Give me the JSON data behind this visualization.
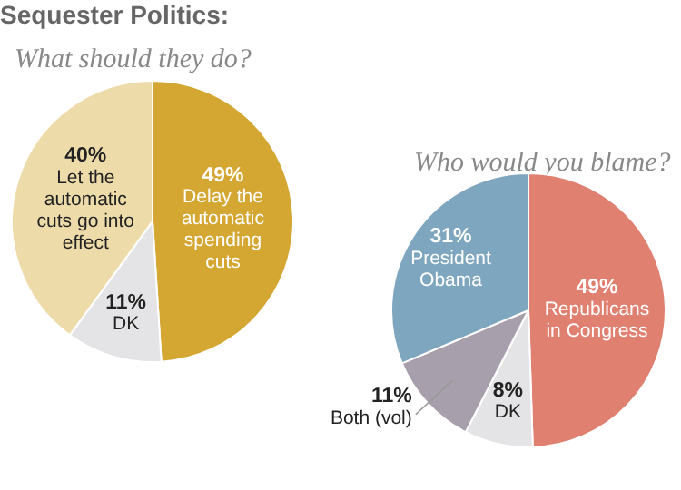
{
  "chart_data": [
    {
      "type": "pie",
      "title": "Sequester Politics:",
      "subtitle": "What should they do?",
      "categories": [
        "Delay the automatic spending cuts",
        "DK",
        "Let the automatic cuts go into effect"
      ],
      "values": [
        49,
        11,
        40
      ],
      "value_labels": [
        "49%",
        "11%",
        "40%"
      ],
      "colors": [
        "#d4a733",
        "#e4e4e6",
        "#eddcaa"
      ]
    },
    {
      "type": "pie",
      "subtitle": "Who would you blame?",
      "categories": [
        "Republicans in Congress",
        "DK",
        "Both (vol)",
        "President Obama"
      ],
      "values": [
        49,
        8,
        11,
        31
      ],
      "value_labels": [
        "49%",
        "8%",
        "11%",
        "31%"
      ],
      "colors": [
        "#e08070",
        "#e4e4e6",
        "#a89fac",
        "#7fa6bf"
      ]
    }
  ]
}
